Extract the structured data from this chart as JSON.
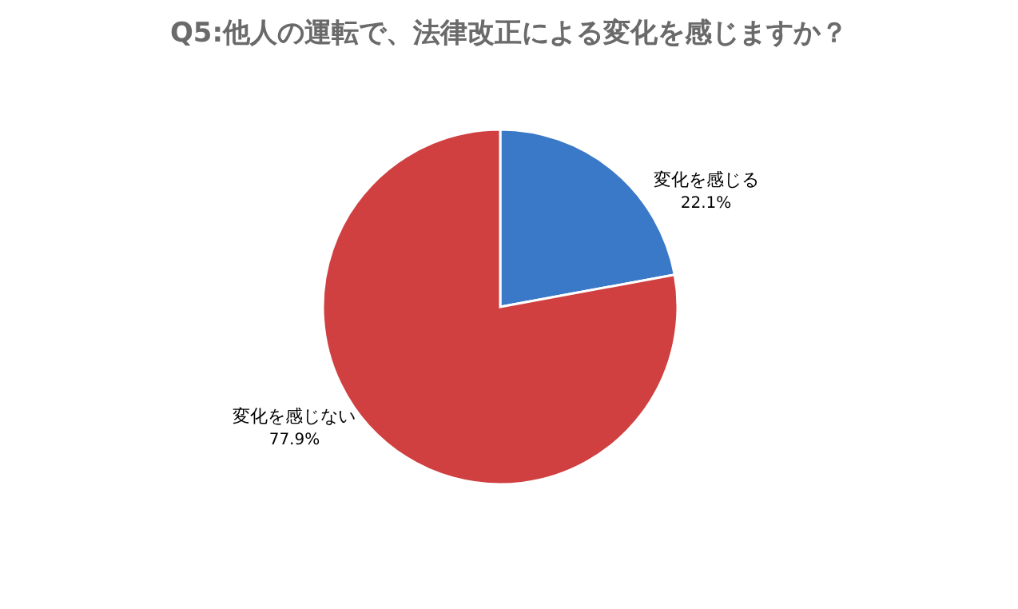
{
  "chart_data": {
    "type": "pie",
    "title": "Q5:他人の運転で、法律改正による変化を感じますか？",
    "categories": [
      "変化を感じる",
      "変化を感じない"
    ],
    "values": [
      22.1,
      77.9
    ],
    "value_labels": [
      "22.1%",
      "77.9%"
    ],
    "colors": [
      "#3a78c8",
      "#d04040"
    ],
    "legend": false
  }
}
